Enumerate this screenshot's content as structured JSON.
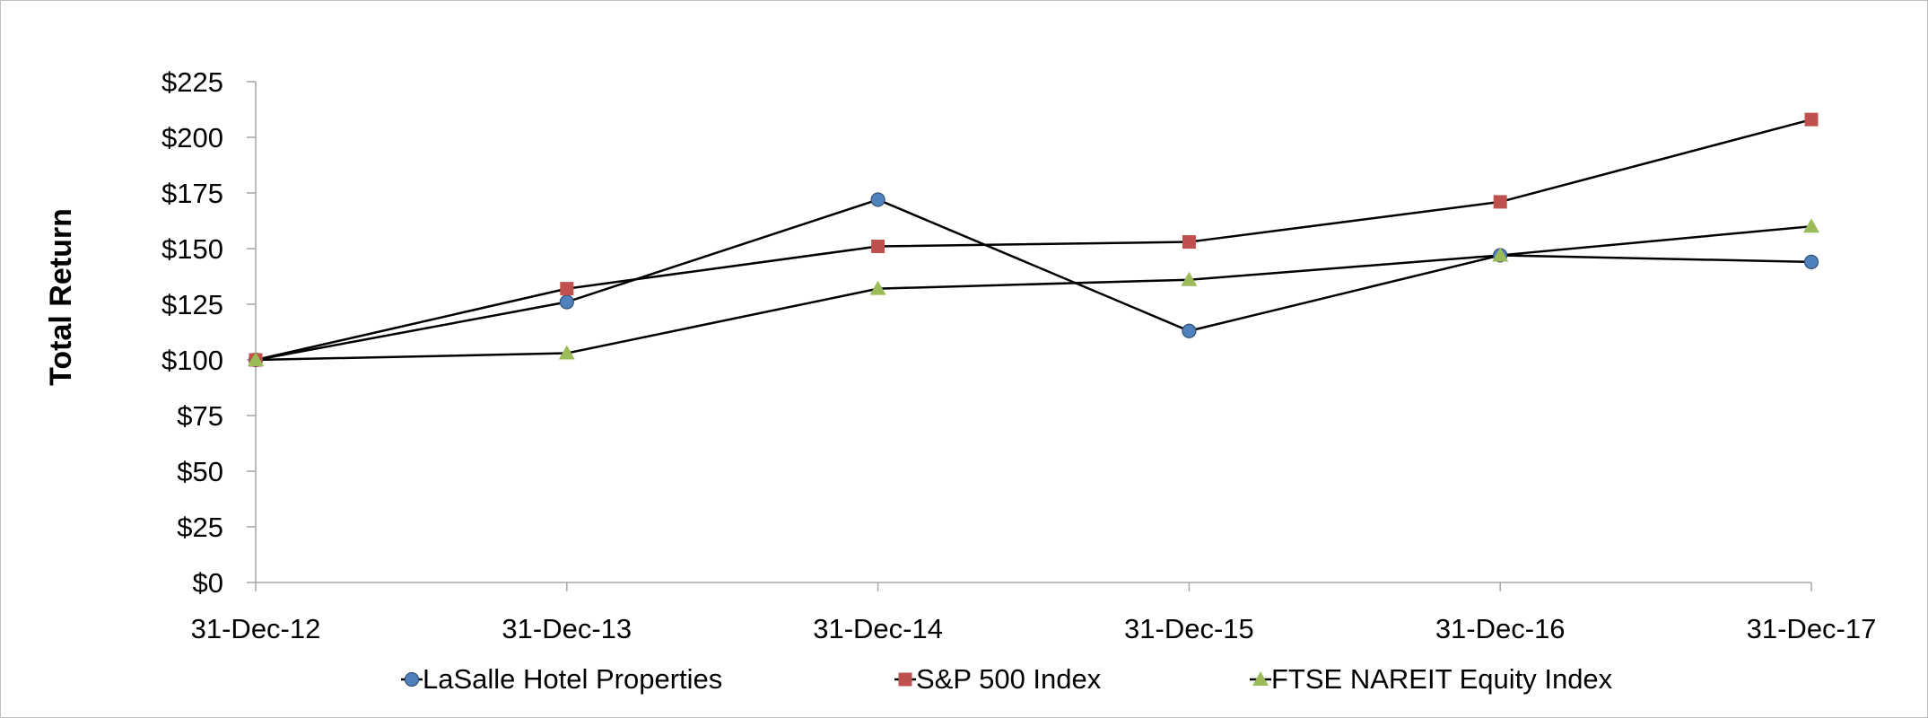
{
  "chart_data": {
    "type": "line",
    "ylabel": "Total Return",
    "xlabel": "",
    "title": "",
    "categories": [
      "31-Dec-12",
      "31-Dec-13",
      "31-Dec-14",
      "31-Dec-15",
      "31-Dec-16",
      "31-Dec-17"
    ],
    "y_ticks": [
      "$0",
      "$25",
      "$50",
      "$75",
      "$100",
      "$125",
      "$150",
      "$175",
      "$200",
      "$225"
    ],
    "ylim": [
      0,
      225
    ],
    "grid": false,
    "legend_position": "bottom",
    "series": [
      {
        "name": "LaSalle Hotel Properties",
        "values": [
          100,
          126,
          172,
          113,
          147,
          144
        ],
        "marker": "circle",
        "color": "#4f81bd"
      },
      {
        "name": "S&P 500 Index",
        "values": [
          100,
          132,
          151,
          153,
          171,
          208
        ],
        "marker": "square",
        "color": "#c0504d"
      },
      {
        "name": "FTSE NAREIT Equity Index",
        "values": [
          100,
          103,
          132,
          136,
          147,
          160
        ],
        "marker": "triangle",
        "color": "#9bbb59"
      }
    ]
  }
}
